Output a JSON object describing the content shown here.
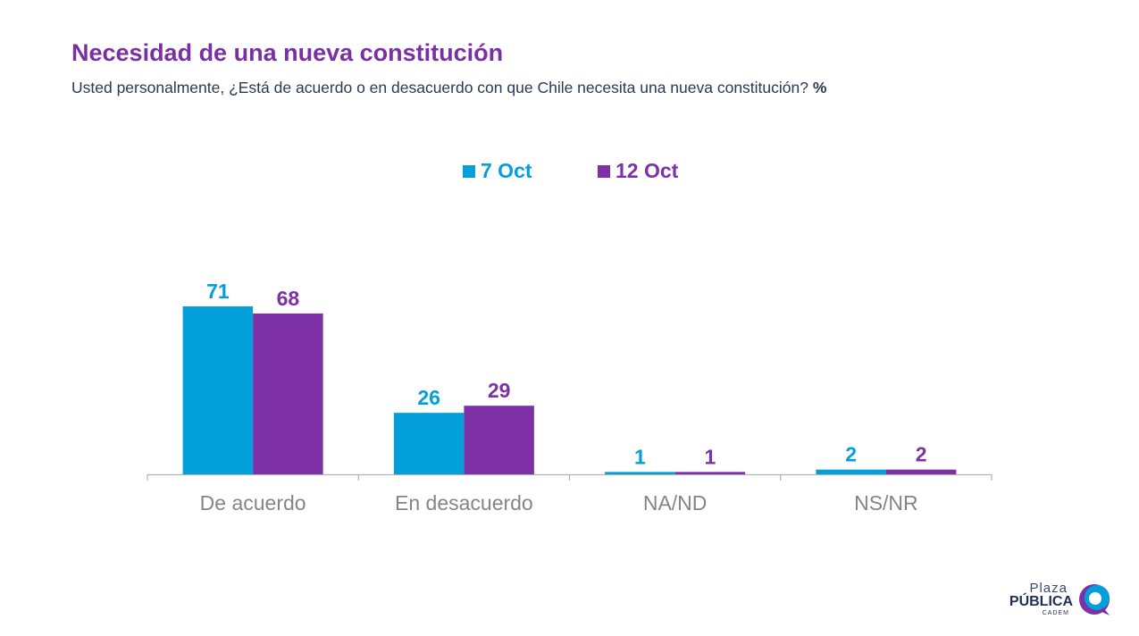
{
  "title": "Necesidad de una nueva constitución",
  "subtitle": "Usted personalmente, ¿Está de acuerdo o en desacuerdo con que Chile necesita una nueva constitución?",
  "subtitle_unit": "%",
  "colors": {
    "series1": "#039fdb",
    "series2": "#7e30a6",
    "axis": "#b3b3b3",
    "tick_text": "#858585"
  },
  "chart_data": {
    "type": "bar",
    "categories": [
      "De acuerdo",
      "En desacuerdo",
      "NA/ND",
      "NS/NR"
    ],
    "series": [
      {
        "name": "7 Oct",
        "values": [
          71,
          26,
          1,
          2
        ]
      },
      {
        "name": "12 Oct",
        "values": [
          68,
          29,
          1,
          2
        ]
      }
    ],
    "ylim": [
      0,
      71
    ],
    "legend": "top-center",
    "grid": false,
    "data_labels": true
  },
  "logo": {
    "line1": "Plaza",
    "line2": "PÚBLICA",
    "line3": "CADEM"
  }
}
